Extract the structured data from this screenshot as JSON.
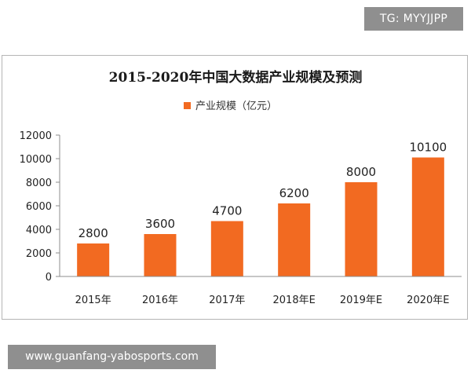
{
  "tag": "TG: MYYJJPP",
  "url": "www.guanfang-yabosports.com",
  "colors": {
    "bar": "#f26a21",
    "badge_bg": "#8f8f8f"
  },
  "chart_data": {
    "type": "bar",
    "title": "2015-2020年中国大数据产业规模及预测",
    "legend": "产业规模（亿元）",
    "legend_position": "top",
    "categories": [
      "2015年",
      "2016年",
      "2017年",
      "2018年E",
      "2019年E",
      "2020年E"
    ],
    "series": [
      {
        "name": "产业规模（亿元）",
        "values": [
          2800,
          3600,
          4700,
          6200,
          8000,
          10100
        ]
      }
    ],
    "data_labels": [
      "2800",
      "3600",
      "4700",
      "6200",
      "8000",
      "10100"
    ],
    "ylim": [
      0,
      12000
    ],
    "yticks": [
      0,
      2000,
      4000,
      6000,
      8000,
      10000,
      12000
    ],
    "grid": false
  }
}
